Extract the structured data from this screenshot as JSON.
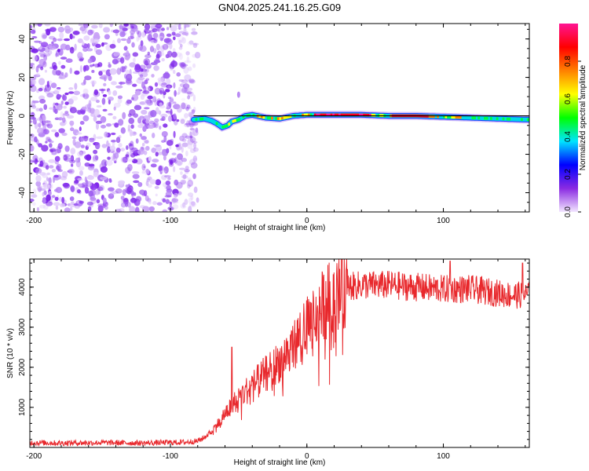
{
  "title": "GN04.2025.241.16.25.G09",
  "top_panel": {
    "xlabel": "Height of straight line (km)",
    "ylabel": "Frequency (Hz)",
    "xlim": [
      -203,
      163
    ],
    "ylim": [
      -50,
      48
    ],
    "xticks": [
      -200,
      -100,
      0,
      100
    ],
    "yticks": [
      -40,
      -20,
      0,
      20,
      40
    ]
  },
  "colorbar": {
    "label": "Normalized spectral amplitude",
    "ticks": [
      "0.0",
      "0.2",
      "0.4",
      "0.6",
      "0.8"
    ],
    "tick_values": [
      0,
      0.2,
      0.4,
      0.6,
      0.8
    ],
    "range": [
      0,
      1
    ],
    "colors": [
      "#f3e6ff",
      "#8a2be2",
      "#0000ff",
      "#00e5ff",
      "#00ff00",
      "#ffff00",
      "#ff8000",
      "#ff0000",
      "#ff1493"
    ]
  },
  "bottom_panel": {
    "xlabel": "Height of straight line (km)",
    "ylabel": "SNR (10 * v/v)",
    "xlim": [
      -203,
      163
    ],
    "ylim": [
      0,
      4700
    ],
    "xticks": [
      -200,
      -100,
      0,
      100
    ],
    "yticks": [
      1000,
      2000,
      3000,
      4000
    ],
    "line_color": "#e8282c"
  },
  "chart_data": [
    {
      "type": "heatmap",
      "title": "GN04.2025.241.16.25.G09",
      "xlabel": "Height of straight line (km)",
      "ylabel": "Frequency (Hz)",
      "xlim": [
        -203,
        163
      ],
      "ylim": [
        -50,
        48
      ],
      "noise_region_x": [
        -203,
        -80
      ],
      "signal_track": {
        "x": [
          -83,
          -75,
          -70,
          -66,
          -62,
          -58,
          -55,
          -50,
          -45,
          -40,
          -30,
          -20,
          -10,
          0,
          20,
          40,
          60,
          80,
          100,
          120,
          140,
          163
        ],
        "y": [
          -2,
          -1.5,
          -2.5,
          -4,
          -6,
          -5,
          -3,
          -2,
          0,
          0.5,
          -1,
          -1.5,
          0,
          0.5,
          0.5,
          0.5,
          0,
          0,
          -0.5,
          -1,
          -1.5,
          -2
        ]
      },
      "model_line": {
        "x": [
          -83,
          163
        ],
        "y": [
          0,
          0
        ]
      },
      "colorbar_label": "Normalized spectral amplitude",
      "colorbar_range": [
        0,
        1
      ]
    },
    {
      "type": "line",
      "xlabel": "Height of straight line (km)",
      "ylabel": "SNR (10 * v/v)",
      "xlim": [
        -203,
        163
      ],
      "ylim": [
        0,
        4700
      ],
      "series": [
        {
          "name": "SNR",
          "x": [
            -203,
            -180,
            -150,
            -120,
            -90,
            -80,
            -75,
            -70,
            -65,
            -60,
            -55,
            -50,
            -40,
            -30,
            -20,
            -10,
            0,
            10,
            20,
            30,
            40,
            60,
            80,
            100,
            120,
            140,
            150,
            163
          ],
          "y": [
            120,
            110,
            120,
            110,
            130,
            160,
            250,
            400,
            600,
            850,
            1050,
            1250,
            1550,
            1850,
            2150,
            2550,
            3000,
            3500,
            3850,
            4000,
            4050,
            4050,
            4000,
            3950,
            3950,
            3850,
            3800,
            3800
          ]
        }
      ],
      "annotations": [
        {
          "x": -55,
          "y": 2500,
          "note": "spike"
        },
        {
          "x": 105,
          "y": 4650,
          "note": "spike"
        },
        {
          "x": 158,
          "y": 4600,
          "note": "spike"
        }
      ]
    }
  ]
}
